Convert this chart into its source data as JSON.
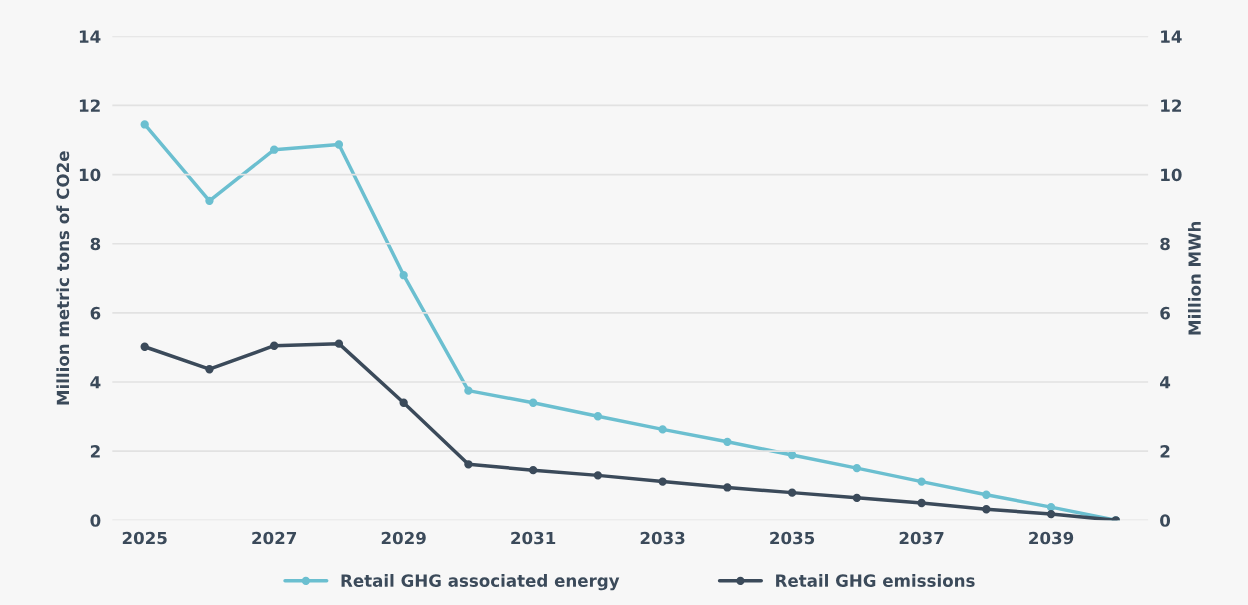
{
  "chart_data": {
    "type": "line",
    "ylabel": "Million metric tons of CO2e",
    "y2label": "Million MWh",
    "x": [
      2025,
      2026,
      2027,
      2028,
      2029,
      2030,
      2031,
      2032,
      2033,
      2034,
      2035,
      2036,
      2037,
      2038,
      2039,
      2040
    ],
    "xlim": [
      2024.5,
      2040.5
    ],
    "xticks": [
      2025,
      2027,
      2029,
      2031,
      2033,
      2035,
      2037,
      2039
    ],
    "ylim": [
      0,
      14
    ],
    "yticks": [
      0,
      2,
      4,
      6,
      8,
      10,
      12,
      14
    ],
    "y2lim": [
      0,
      14
    ],
    "y2ticks": [
      0,
      2,
      4,
      6,
      8,
      10,
      12,
      14
    ],
    "series": [
      {
        "name": "Retail GHG associated energy",
        "color": "#6bbfd0",
        "axis": "y2",
        "values": [
          11.45,
          9.24,
          10.72,
          10.87,
          7.09,
          3.75,
          3.4,
          3.01,
          2.63,
          2.27,
          1.89,
          1.51,
          1.12,
          0.74,
          0.38,
          0
        ]
      },
      {
        "name": "Retail GHG emissions",
        "color": "#3b4a5a",
        "values": [
          5.02,
          4.37,
          5.05,
          5.11,
          3.4,
          1.62,
          1.45,
          1.3,
          1.12,
          0.95,
          0.8,
          0.65,
          0.5,
          0.32,
          0.18,
          0
        ]
      }
    ],
    "grid": "y",
    "legend": "bottom",
    "marker": "circle",
    "line_style": "solid"
  }
}
